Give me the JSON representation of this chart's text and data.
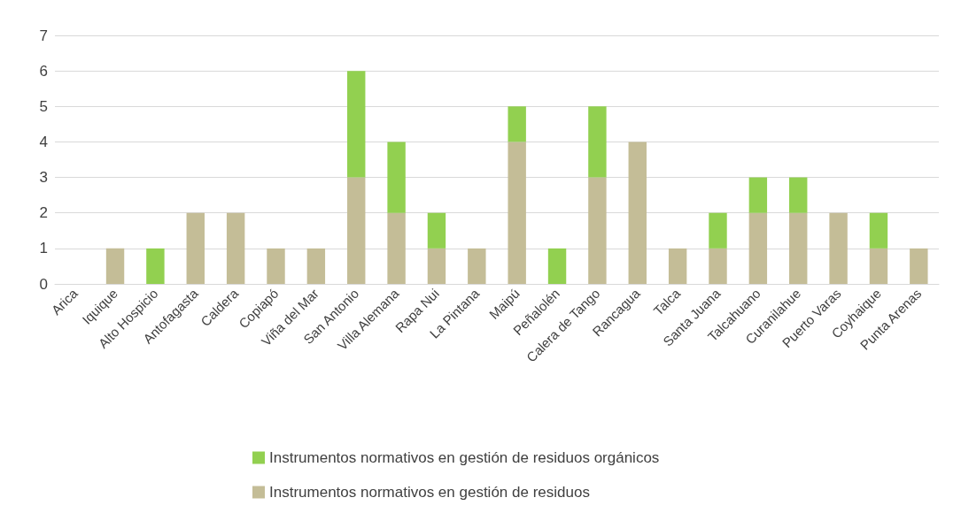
{
  "chart_data": {
    "type": "bar",
    "stacked": true,
    "categories": [
      "Arica",
      "Iquique",
      "Alto Hospicio",
      "Antofagasta",
      "Caldera",
      "Copiapó",
      "Viña del Mar",
      "San Antonio",
      "Villa Alemana",
      "Rapa Nui",
      "La Pintana",
      "Maipú",
      "Peñalolén",
      "Calera de Tango",
      "Rancagua",
      "Talca",
      "Santa Juana",
      "Talcahuano",
      "Curanilahue",
      "Puerto Varas",
      "Coyhaique",
      "Punta Arenas"
    ],
    "series": [
      {
        "name": "Instrumentos normativos en gestión de residuos",
        "color": "#c4bd97",
        "values": [
          0,
          1,
          0,
          2,
          2,
          1,
          1,
          3,
          2,
          1,
          1,
          4,
          0,
          3,
          4,
          1,
          1,
          2,
          2,
          2,
          1,
          1
        ]
      },
      {
        "name": "Instrumentos normativos en gestión de residuos orgánicos",
        "color": "#92d050",
        "values": [
          0,
          0,
          1,
          0,
          0,
          0,
          0,
          3,
          2,
          1,
          0,
          1,
          1,
          2,
          0,
          0,
          1,
          1,
          1,
          0,
          1,
          0
        ]
      }
    ],
    "ylim": [
      0,
      7
    ],
    "yticks": [
      0,
      1,
      2,
      3,
      4,
      5,
      6,
      7
    ],
    "grid": "y",
    "legend": "bottom"
  }
}
